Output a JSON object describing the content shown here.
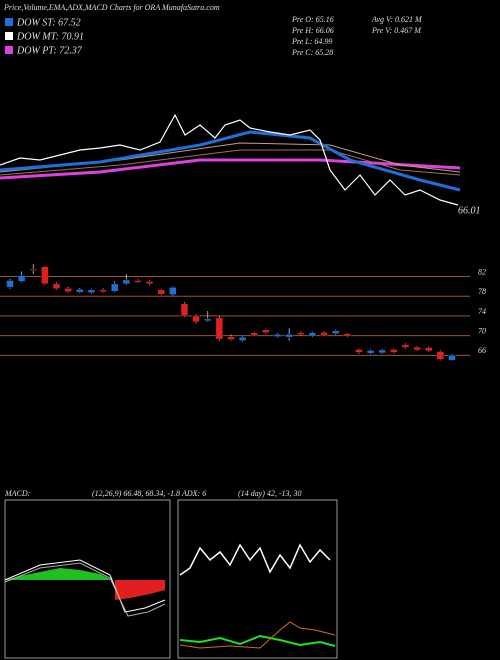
{
  "header": {
    "title": "Price,Volume,EMA,ADX,MACD Charts for ORA MunafaSutra.com",
    "legend": [
      "DOW ST: 67.52",
      "DOW MT: 70.91",
      "DOW PT: 72.37"
    ],
    "info": [
      "Pre  O: 65.16",
      "Pre  H: 66.06",
      "Pre  L: 64.99",
      "Pre  C: 65.28",
      "Avg  V: 0.621 M",
      "Pre  V: 0.467 M"
    ],
    "last_price": "66.01"
  },
  "chart_data": {
    "type": "candlestick",
    "ylim": [
      60,
      90
    ],
    "yticks": [
      82,
      78,
      74,
      70,
      66
    ],
    "up_color": "#1e6fd9",
    "down_color": "#e02020",
    "candles": [
      {
        "open": 79.8,
        "high": 81.5,
        "low": 79.5,
        "close": 81.2
      },
      {
        "open": 81.0,
        "high": 83.0,
        "low": 80.8,
        "close": 82.2
      },
      {
        "open": 83.5,
        "high": 84.5,
        "low": 82.5,
        "close": 83.2
      },
      {
        "open": 84.0,
        "high": 84.2,
        "low": 80.3,
        "close": 80.5
      },
      {
        "open": 80.5,
        "high": 80.8,
        "low": 79.3,
        "close": 79.5
      },
      {
        "open": 79.6,
        "high": 79.9,
        "low": 78.7,
        "close": 78.9
      },
      {
        "open": 78.8,
        "high": 79.7,
        "low": 78.6,
        "close": 79.4
      },
      {
        "open": 78.7,
        "high": 79.5,
        "low": 78.5,
        "close": 79.3
      },
      {
        "open": 79.3,
        "high": 79.6,
        "low": 78.7,
        "close": 78.9
      },
      {
        "open": 79.0,
        "high": 81.0,
        "low": 78.8,
        "close": 80.5
      },
      {
        "open": 80.5,
        "high": 82.5,
        "low": 80.3,
        "close": 81.3
      },
      {
        "open": 81.2,
        "high": 81.4,
        "low": 80.6,
        "close": 80.8
      },
      {
        "open": 81.0,
        "high": 81.2,
        "low": 80.3,
        "close": 80.5
      },
      {
        "open": 79.3,
        "high": 79.5,
        "low": 78.2,
        "close": 78.4
      },
      {
        "open": 78.3,
        "high": 80.0,
        "low": 78.1,
        "close": 79.8
      },
      {
        "open": 76.5,
        "high": 76.8,
        "low": 73.8,
        "close": 74.0
      },
      {
        "open": 74.0,
        "high": 74.3,
        "low": 72.5,
        "close": 72.8
      },
      {
        "open": 73.0,
        "high": 75.0,
        "low": 72.8,
        "close": 73.4
      },
      {
        "open": 73.6,
        "high": 74.0,
        "low": 69.0,
        "close": 69.3
      },
      {
        "open": 69.8,
        "high": 70.2,
        "low": 69.0,
        "close": 69.2
      },
      {
        "open": 69.0,
        "high": 69.9,
        "low": 68.8,
        "close": 69.7
      },
      {
        "open": 70.6,
        "high": 70.8,
        "low": 69.9,
        "close": 70.1
      },
      {
        "open": 71.2,
        "high": 71.4,
        "low": 70.4,
        "close": 70.6
      },
      {
        "open": 69.8,
        "high": 70.5,
        "low": 69.6,
        "close": 70.3
      },
      {
        "open": 69.7,
        "high": 71.5,
        "low": 69.0,
        "close": 70.3
      },
      {
        "open": 70.6,
        "high": 70.9,
        "low": 70.0,
        "close": 70.2
      },
      {
        "open": 69.9,
        "high": 70.8,
        "low": 69.7,
        "close": 70.6
      },
      {
        "open": 70.7,
        "high": 70.9,
        "low": 69.9,
        "close": 70.1
      },
      {
        "open": 70.4,
        "high": 71.2,
        "low": 70.2,
        "close": 71.0
      },
      {
        "open": 70.4,
        "high": 70.6,
        "low": 69.7,
        "close": 69.9
      },
      {
        "open": 67.2,
        "high": 67.4,
        "low": 66.3,
        "close": 66.6
      },
      {
        "open": 66.4,
        "high": 67.2,
        "low": 66.2,
        "close": 67.0
      },
      {
        "open": 66.5,
        "high": 67.3,
        "low": 66.3,
        "close": 67.1
      },
      {
        "open": 67.2,
        "high": 67.4,
        "low": 66.4,
        "close": 66.6
      },
      {
        "open": 68.2,
        "high": 68.4,
        "low": 67.4,
        "close": 67.6
      },
      {
        "open": 67.7,
        "high": 67.9,
        "low": 66.9,
        "close": 67.1
      },
      {
        "open": 67.6,
        "high": 67.8,
        "low": 66.7,
        "close": 66.9
      },
      {
        "open": 66.8,
        "high": 67.0,
        "low": 65.0,
        "close": 65.2
      },
      {
        "open": 65.0,
        "high": 66.2,
        "low": 64.9,
        "close": 66.0
      }
    ]
  },
  "macd": {
    "label": "MACD:",
    "params": "(12,26,9) 66.48, 68.34, -1.8"
  },
  "adx": {
    "label": "ADX:  6",
    "params": "(14 day) 42, -13, 30"
  }
}
